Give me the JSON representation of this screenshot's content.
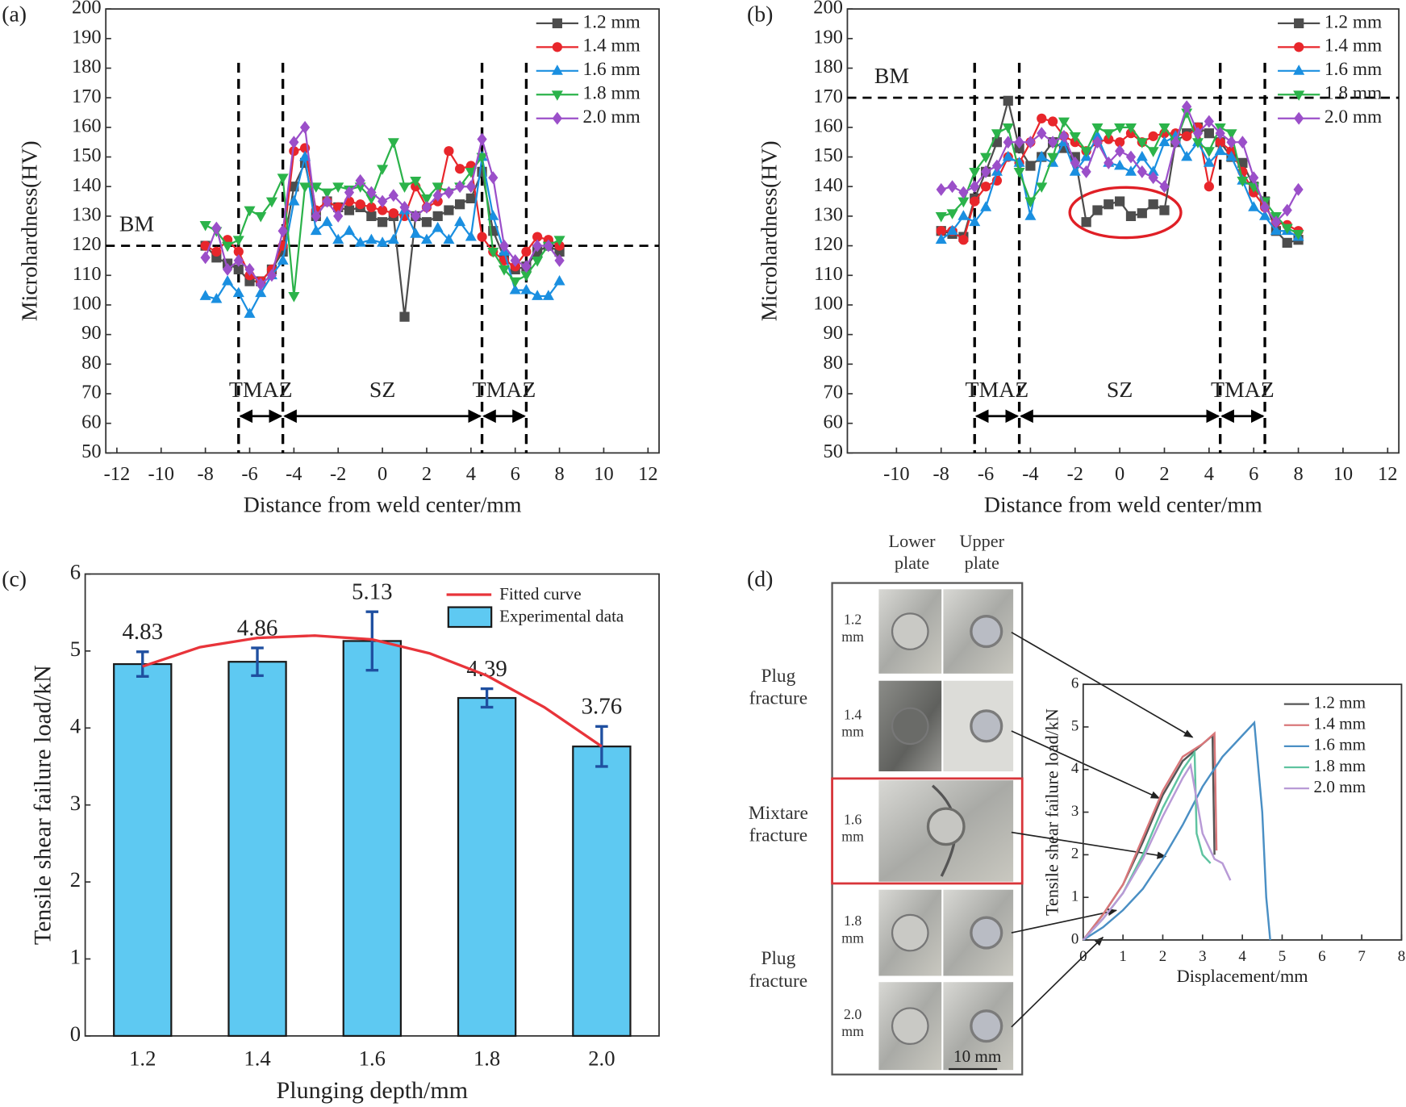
{
  "chart_data": [
    {
      "type": "line",
      "panel_label": "(a)",
      "xlabel": "Distance from weld center/mm",
      "ylabel": "Microhardness(HV)",
      "x": [
        -8,
        -7.5,
        -7,
        -6.5,
        -6,
        -5.5,
        -5,
        -4.5,
        -4,
        -3.5,
        -3,
        -2.5,
        -2,
        -1.5,
        -1,
        -0.5,
        0,
        0.5,
        1,
        1.5,
        2,
        2.5,
        3,
        3.5,
        4,
        4.5,
        5,
        5.5,
        6,
        6.5,
        7,
        7.5,
        8
      ],
      "xlim": [
        -12.5,
        12.5
      ],
      "xticks": [
        -12,
        -10,
        -8,
        -6,
        -4,
        -2,
        0,
        2,
        4,
        6,
        8,
        10,
        12
      ],
      "ylim": [
        50,
        200
      ],
      "yticks": [
        50,
        60,
        70,
        80,
        90,
        100,
        110,
        120,
        130,
        140,
        150,
        160,
        170,
        180,
        190,
        200
      ],
      "reference_lines": {
        "x": [
          -6.5,
          -4.5,
          4.5,
          6.5
        ],
        "y": [
          120
        ]
      },
      "annotations": [
        "BM",
        "TMAZ",
        "SZ",
        "TMAZ"
      ],
      "legend": "upper right",
      "series": [
        {
          "name": "1.2 mm",
          "color": "#4d4d4d",
          "marker": "square",
          "values": [
            120,
            116,
            114,
            112,
            108,
            108,
            112,
            118,
            140,
            148,
            130,
            135,
            133,
            132,
            133,
            130,
            128,
            130,
            96,
            130,
            128,
            130,
            132,
            134,
            136,
            145,
            125,
            116,
            112,
            113,
            118,
            120,
            118
          ]
        },
        {
          "name": "1.4 mm",
          "color": "#e8262b",
          "marker": "circle",
          "values": [
            120,
            118,
            122,
            118,
            110,
            108,
            112,
            120,
            152,
            153,
            132,
            135,
            133,
            135,
            134,
            133,
            132,
            131,
            130,
            140,
            133,
            135,
            152,
            146,
            147,
            123,
            118,
            115,
            113,
            118,
            123,
            122,
            120
          ]
        },
        {
          "name": "1.6 mm",
          "color": "#1a8fe0",
          "marker": "triangle-up",
          "values": [
            103,
            102,
            108,
            104,
            97,
            104,
            110,
            115,
            135,
            150,
            125,
            128,
            122,
            125,
            121,
            122,
            121,
            122,
            132,
            124,
            122,
            126,
            122,
            128,
            123,
            150,
            130,
            118,
            105,
            105,
            103,
            103,
            108
          ]
        },
        {
          "name": "1.8 mm",
          "color": "#2bb34a",
          "marker": "triangle-down",
          "values": [
            127,
            125,
            120,
            122,
            132,
            130,
            135,
            143,
            103,
            140,
            140,
            138,
            140,
            139,
            140,
            136,
            146,
            155,
            140,
            142,
            136,
            140,
            138,
            140,
            145,
            150,
            118,
            112,
            108,
            110,
            115,
            120,
            122
          ]
        },
        {
          "name": "2.0 mm",
          "color": "#9b4fc9",
          "marker": "diamond",
          "values": [
            116,
            126,
            112,
            115,
            112,
            107,
            110,
            125,
            155,
            160,
            130,
            135,
            130,
            138,
            142,
            138,
            135,
            137,
            133,
            130,
            133,
            137,
            138,
            140,
            140,
            156,
            143,
            120,
            115,
            113,
            120,
            120,
            115
          ]
        }
      ]
    },
    {
      "type": "line",
      "panel_label": "(b)",
      "xlabel": "Distance from weld center/mm",
      "ylabel": "Microhardness(HV)",
      "x": [
        -8,
        -7.5,
        -7,
        -6.5,
        -6,
        -5.5,
        -5,
        -4.5,
        -4,
        -3.5,
        -3,
        -2.5,
        -2,
        -1.5,
        -1,
        -0.5,
        0,
        0.5,
        1,
        1.5,
        2,
        2.5,
        3,
        3.5,
        4,
        4.5,
        5,
        5.5,
        6,
        6.5,
        7,
        7.5,
        8
      ],
      "xlim": [
        -12.2,
        12.5
      ],
      "xticks": [
        -10,
        -8,
        -6,
        -4,
        -2,
        0,
        2,
        4,
        6,
        8,
        10,
        12
      ],
      "ylim": [
        50,
        200
      ],
      "yticks": [
        50,
        60,
        70,
        80,
        90,
        100,
        110,
        120,
        130,
        140,
        150,
        160,
        170,
        180,
        190,
        200
      ],
      "reference_lines": {
        "x": [
          -6.5,
          -4.5,
          4.5,
          6.5
        ],
        "y": [
          170
        ]
      },
      "annotations": [
        "BM",
        "TMAZ",
        "SZ",
        "TMAZ"
      ],
      "legend": "upper right",
      "series": [
        {
          "name": "1.2 mm",
          "color": "#4d4d4d",
          "marker": "square",
          "values": [
            125,
            124,
            123,
            136,
            145,
            155,
            169,
            153,
            147,
            150,
            155,
            153,
            150,
            128,
            132,
            134,
            135,
            130,
            131,
            134,
            132,
            155,
            158,
            160,
            158,
            155,
            150,
            148,
            140,
            135,
            125,
            121,
            122
          ]
        },
        {
          "name": "1.4 mm",
          "color": "#e8262b",
          "marker": "circle",
          "values": [
            125,
            125,
            122,
            135,
            140,
            142,
            150,
            148,
            155,
            163,
            162,
            157,
            155,
            152,
            155,
            156,
            155,
            158,
            155,
            157,
            158,
            158,
            157,
            160,
            140,
            155,
            152,
            145,
            138,
            133,
            128,
            127,
            125
          ]
        },
        {
          "name": "1.6 mm",
          "color": "#1a8fe0",
          "marker": "triangle-up",
          "values": [
            122,
            125,
            130,
            128,
            133,
            145,
            150,
            148,
            130,
            150,
            148,
            155,
            145,
            150,
            157,
            148,
            147,
            145,
            150,
            145,
            155,
            157,
            150,
            155,
            148,
            152,
            150,
            142,
            133,
            130,
            125,
            125,
            123
          ]
        },
        {
          "name": "1.8 mm",
          "color": "#2bb34a",
          "marker": "triangle-down",
          "values": [
            130,
            131,
            135,
            145,
            150,
            158,
            160,
            145,
            135,
            140,
            150,
            162,
            157,
            152,
            160,
            158,
            160,
            160,
            155,
            152,
            160,
            155,
            165,
            155,
            152,
            160,
            158,
            142,
            140,
            135,
            130,
            126,
            124
          ]
        },
        {
          "name": "2.0 mm",
          "color": "#9b4fc9",
          "marker": "diamond",
          "values": [
            139,
            140,
            138,
            140,
            145,
            147,
            155,
            155,
            155,
            158,
            155,
            157,
            148,
            145,
            155,
            148,
            152,
            150,
            145,
            143,
            140,
            155,
            167,
            158,
            162,
            158,
            155,
            155,
            143,
            133,
            128,
            132,
            139
          ]
        }
      ]
    },
    {
      "type": "bar",
      "panel_label": "(c)",
      "xlabel": "Plunging depth/mm",
      "ylabel": "Tensile shear failure load/kN",
      "name": "Experimental data",
      "color": "#5ec9f2",
      "error_color": "#1f4fa0",
      "x": [
        1.2,
        1.4,
        1.6,
        1.8,
        2.0
      ],
      "values": [
        4.83,
        4.86,
        5.13,
        4.39,
        3.76
      ],
      "errors": [
        0.16,
        0.18,
        0.38,
        0.12,
        0.26
      ],
      "xlim": [
        1.1,
        2.1
      ],
      "xticks": [
        1.2,
        1.4,
        1.6,
        1.8,
        {
          "value": 2,
          "label": "2.0"
        }
      ],
      "ylim": [
        0,
        6
      ],
      "yticks": [
        0,
        1,
        2,
        3,
        4,
        5,
        6
      ],
      "legend": "upper right",
      "fit": {
        "name": "Fitted curve",
        "color": "#e8343a",
        "x": [
          1.2,
          1.3,
          1.4,
          1.5,
          1.6,
          1.7,
          1.8,
          1.9,
          2.0
        ],
        "values": [
          4.8,
          5.05,
          5.17,
          5.2,
          5.15,
          4.97,
          4.68,
          4.27,
          3.76
        ]
      }
    },
    {
      "type": "line",
      "panel_label": "(d)",
      "xlabel": "Displacement/mm",
      "ylabel": "Tensile shear failure load/kN",
      "xlim": [
        0,
        8
      ],
      "xticks": [
        0,
        1,
        2,
        3,
        4,
        5,
        6,
        7,
        8
      ],
      "ylim": [
        0,
        6
      ],
      "yticks": [
        0,
        1,
        2,
        3,
        4,
        5,
        6
      ],
      "legend": "upper right",
      "series": [
        {
          "name": "1.2 mm",
          "color": "#555555",
          "x": [
            0,
            0.5,
            1,
            1.5,
            2,
            2.5,
            3,
            3.25,
            3.3
          ],
          "values": [
            0,
            0.6,
            1.3,
            2.3,
            3.4,
            4.2,
            4.6,
            4.8,
            2.0
          ]
        },
        {
          "name": "1.4 mm",
          "color": "#d9777a",
          "x": [
            0,
            0.5,
            1,
            1.5,
            2,
            2.5,
            3,
            3.3,
            3.35
          ],
          "values": [
            0,
            0.6,
            1.3,
            2.4,
            3.5,
            4.3,
            4.6,
            4.85,
            2.1
          ]
        },
        {
          "name": "1.6 mm",
          "color": "#4a8fc4",
          "x": [
            0,
            0.5,
            1,
            1.5,
            2,
            2.5,
            3,
            3.5,
            4,
            4.3,
            4.5,
            4.6,
            4.7
          ],
          "values": [
            0,
            0.3,
            0.7,
            1.2,
            1.9,
            2.7,
            3.6,
            4.3,
            4.8,
            5.1,
            3.0,
            1.0,
            0
          ]
        },
        {
          "name": "1.8 mm",
          "color": "#5fc3a0",
          "x": [
            0,
            0.5,
            1,
            1.5,
            2,
            2.5,
            2.8,
            2.85,
            3.0,
            3.2
          ],
          "values": [
            0,
            0.5,
            1.1,
            2.0,
            3.1,
            4.0,
            4.4,
            2.5,
            2.0,
            1.8
          ]
        },
        {
          "name": "2.0 mm",
          "color": "#b89ad6",
          "x": [
            0,
            0.5,
            1,
            1.5,
            2,
            2.5,
            2.7,
            3.0,
            3.3,
            3.5,
            3.7
          ],
          "values": [
            0,
            0.5,
            1.1,
            1.9,
            2.9,
            3.8,
            4.1,
            2.5,
            1.9,
            1.8,
            1.4
          ]
        }
      ]
    }
  ],
  "photo_panel": {
    "column_headers": [
      "Lower plate",
      "Upper plate"
    ],
    "groups": [
      "Plug fracture",
      "Mixtare fracture",
      "Plug fracture"
    ],
    "specimens": [
      "1.2 mm",
      "1.4 mm",
      "1.6 mm",
      "1.8 mm",
      "2.0 mm"
    ],
    "scale_bar": "10 mm"
  }
}
